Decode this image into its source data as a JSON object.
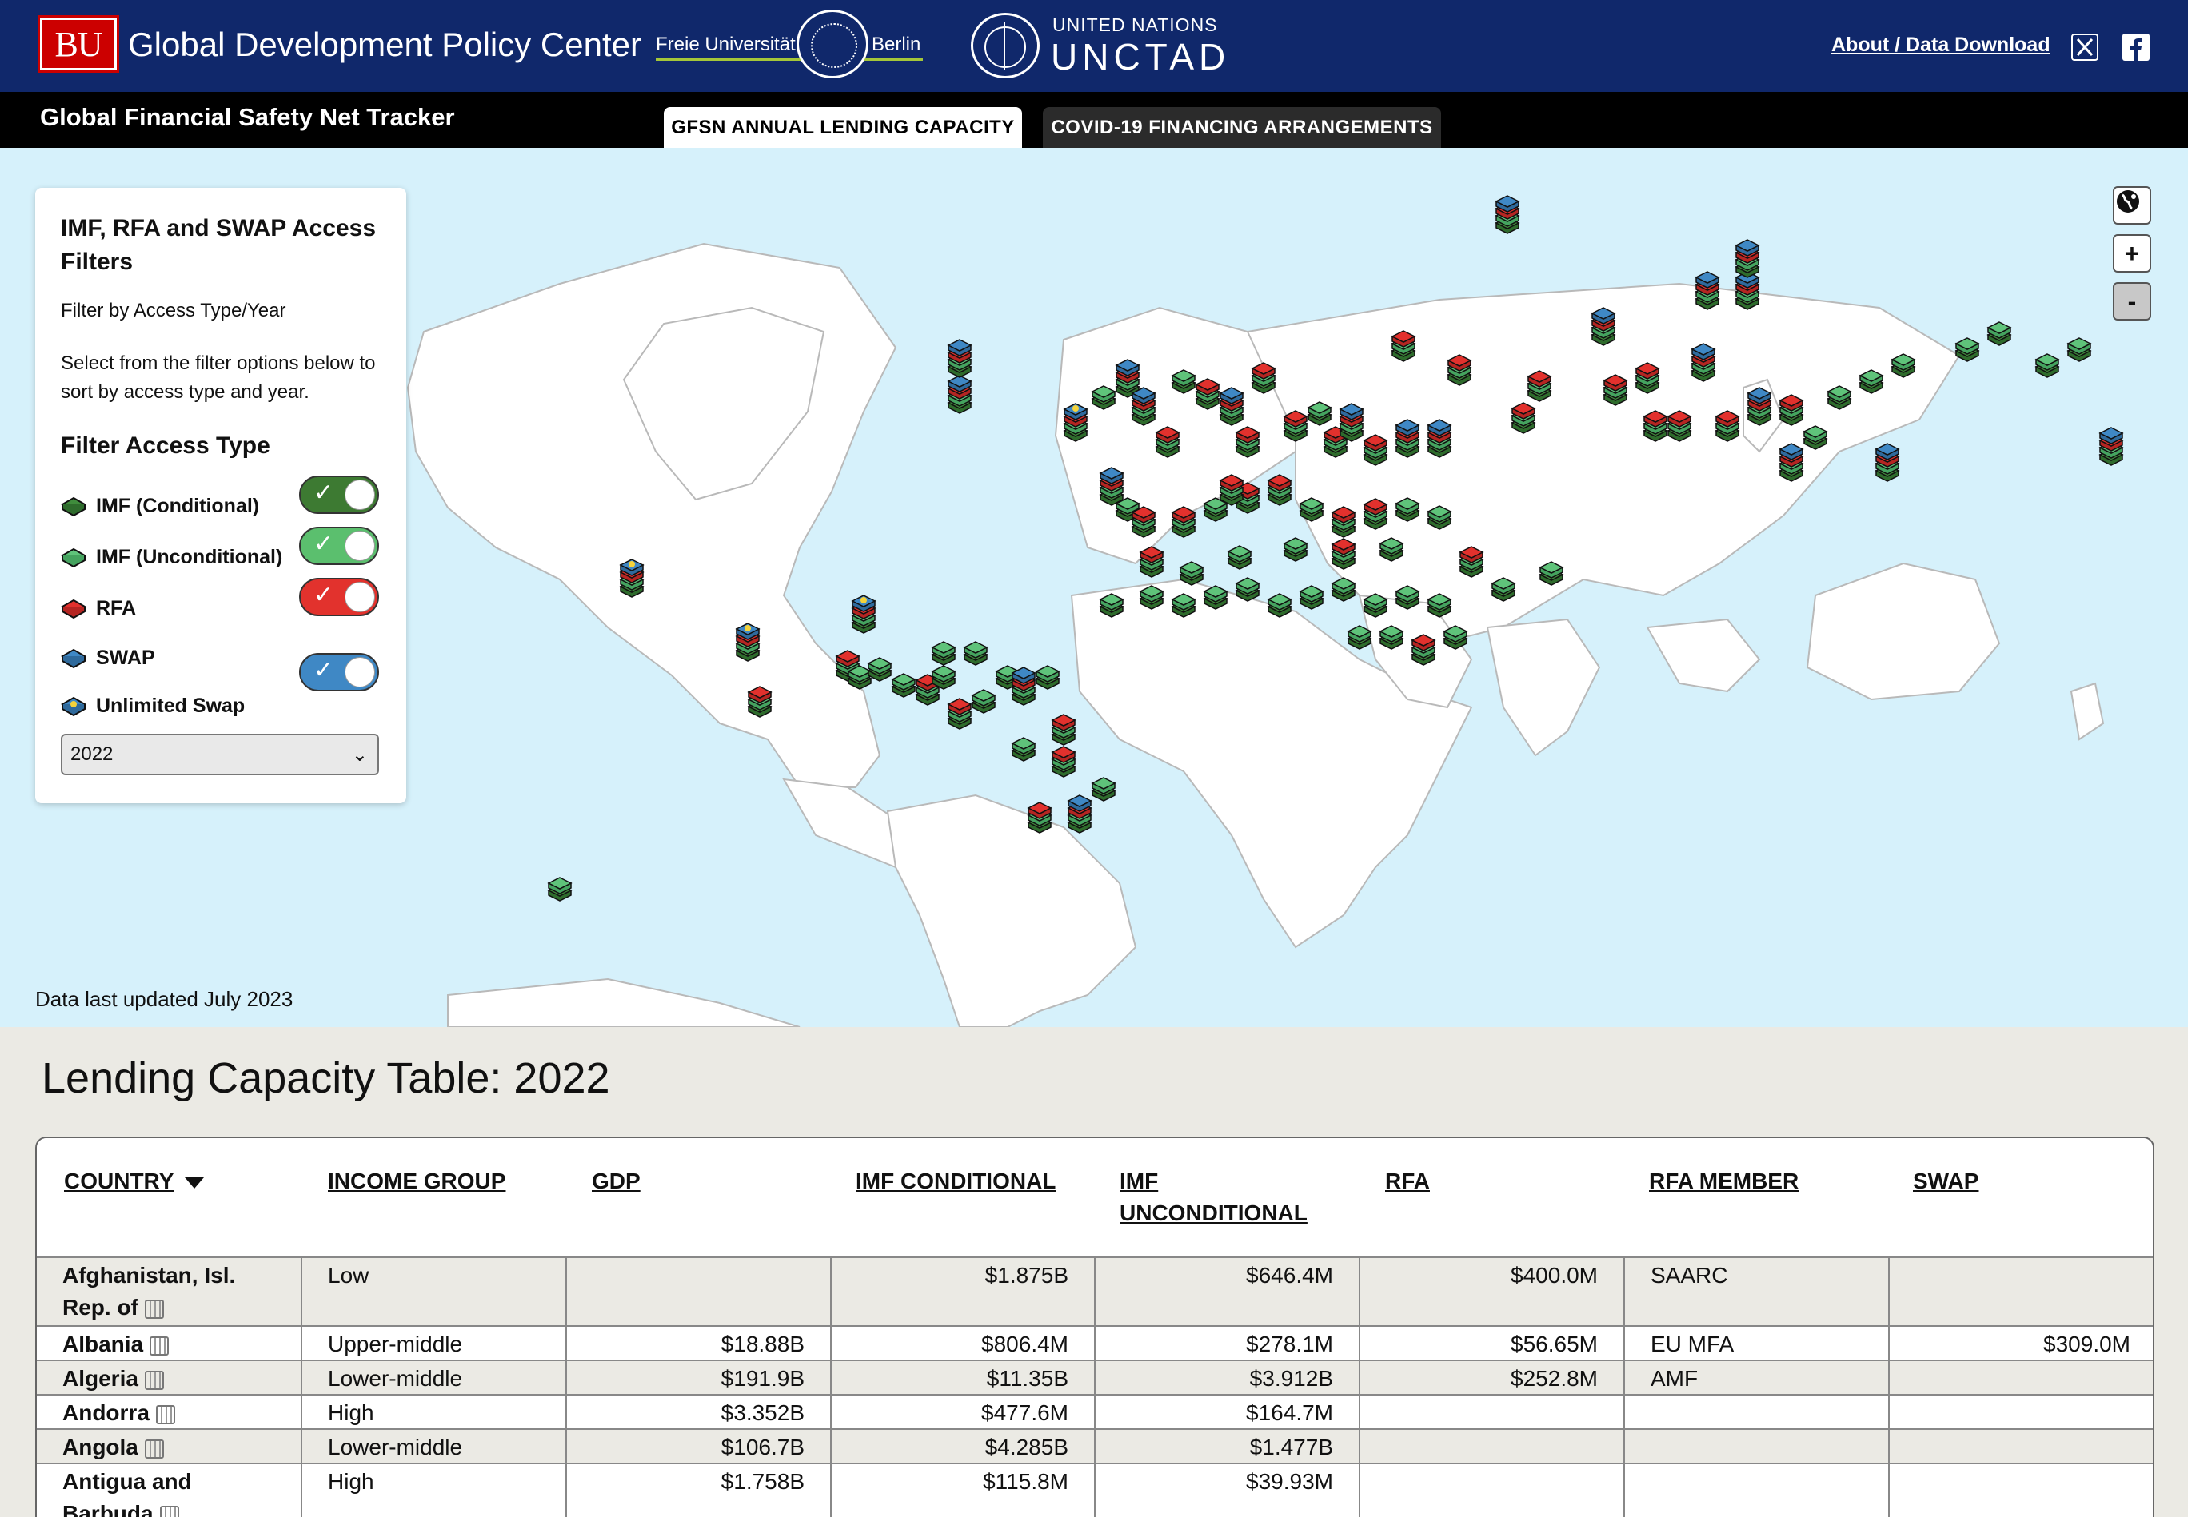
{
  "header": {
    "bu_logo": "BU",
    "org_name": "Global Development Policy Center",
    "fu_left": "Freie Universität",
    "fu_right": "Berlin",
    "un_small": "UNITED NATIONS",
    "un_big": "UNCTAD",
    "about_link": "About / Data Download",
    "social_icons": [
      "x-icon",
      "facebook-icon"
    ]
  },
  "tracker": {
    "title": "Global Financial Safety Net Tracker",
    "tabs": [
      {
        "label": "GFSN ANNUAL LENDING CAPACITY",
        "active": true
      },
      {
        "label": "COVID-19 FINANCING ARRANGEMENTS",
        "active": false
      }
    ]
  },
  "filters": {
    "title": "IMF, RFA and SWAP Access Filters",
    "subtitle": "Filter by Access Type/Year",
    "description": "Select from the filter options below to sort by access type and year.",
    "filter_heading": "Filter Access Type",
    "types": [
      {
        "label": "IMF (Conditional)",
        "color": "#3f8c3c",
        "toggle": true,
        "toggle_color": "#3d7a32"
      },
      {
        "label": "IMF (Unconditional)",
        "color": "#5fc37a",
        "toggle": true,
        "toggle_color": "#5bbf6e"
      },
      {
        "label": "RFA",
        "color": "#e2312d",
        "toggle": true,
        "toggle_color": "#e2322d"
      },
      {
        "label": "SWAP",
        "color": "#3f88c5",
        "toggle": true,
        "toggle_color": "#3f88c5"
      },
      {
        "label": "Unlimited Swap",
        "color": "#3f88c5",
        "accent": "#f5d33a"
      }
    ],
    "year": "2022"
  },
  "map": {
    "controls": [
      "globe-icon",
      "+",
      "-"
    ],
    "updated": "Data last updated July 2023"
  },
  "table": {
    "title": "Lending Capacity Table: 2022",
    "columns": [
      "COUNTRY",
      "INCOME GROUP",
      "GDP",
      "IMF CONDITIONAL",
      "IMF UNCONDITIONAL",
      "RFA",
      "RFA MEMBER",
      "SWAP"
    ],
    "rows": [
      {
        "country": "Afghanistan, Isl. Rep. of",
        "income": "Low",
        "gdp": "",
        "imf_cond": "$1.875B",
        "imf_uncond": "$646.4M",
        "rfa": "$400.0M",
        "rfa_member": "SAARC",
        "swap": ""
      },
      {
        "country": "Albania",
        "income": "Upper-middle",
        "gdp": "$18.88B",
        "imf_cond": "$806.4M",
        "imf_uncond": "$278.1M",
        "rfa": "$56.65M",
        "rfa_member": "EU MFA",
        "swap": "$309.0M"
      },
      {
        "country": "Algeria",
        "income": "Lower-middle",
        "gdp": "$191.9B",
        "imf_cond": "$11.35B",
        "imf_uncond": "$3.912B",
        "rfa": "$252.8M",
        "rfa_member": "AMF",
        "swap": ""
      },
      {
        "country": "Andorra",
        "income": "High",
        "gdp": "$3.352B",
        "imf_cond": "$477.6M",
        "imf_uncond": "$164.7M",
        "rfa": "",
        "rfa_member": "",
        "swap": ""
      },
      {
        "country": "Angola",
        "income": "Lower-middle",
        "gdp": "$106.7B",
        "imf_cond": "$4.285B",
        "imf_uncond": "$1.477B",
        "rfa": "",
        "rfa_member": "",
        "swap": ""
      },
      {
        "country": "Antigua and Barbuda",
        "income": "High",
        "gdp": "$1.758B",
        "imf_cond": "$115.8M",
        "imf_uncond": "$39.93M",
        "rfa": "",
        "rfa_member": "",
        "swap": ""
      }
    ]
  }
}
